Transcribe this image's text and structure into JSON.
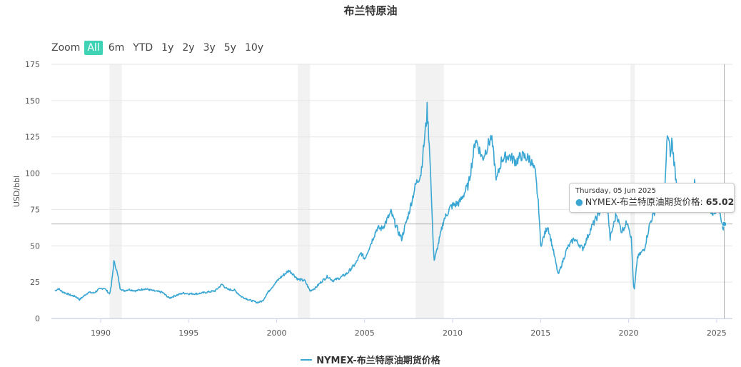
{
  "title": "布兰特原油",
  "zoom": {
    "label": "Zoom",
    "buttons": [
      "All",
      "6m",
      "YTD",
      "1y",
      "2y",
      "3y",
      "5y",
      "10y"
    ],
    "active": "All"
  },
  "tooltip": {
    "date": "Thursday, 05 Jun 2025",
    "series_label": "NYMEX-布兰特原油期货价格",
    "value": "65.02"
  },
  "colors": {
    "series": "#3aa6d3",
    "active_zoom": "#3fd2b5",
    "recession_band": "#f2f2f2",
    "grid": "#e6e6e6"
  },
  "chart_data": {
    "type": "line",
    "title": "布兰特原油",
    "ylabel": "USD/bbl",
    "xlabel": "",
    "ylim": [
      0,
      175
    ],
    "xlim": [
      1987.2,
      2025.9
    ],
    "yticks": [
      0,
      25,
      50,
      75,
      100,
      125,
      150,
      175
    ],
    "xticks": [
      1990,
      1995,
      2000,
      2005,
      2010,
      2015,
      2020,
      2025
    ],
    "grid": true,
    "legend_position": "bottom",
    "recession_bands": [
      [
        1990.5,
        1991.2
      ],
      [
        2001.2,
        2001.9
      ],
      [
        2007.9,
        2009.5
      ],
      [
        2020.1,
        2020.35
      ]
    ],
    "crosshair": {
      "x": 2025.43,
      "y": 65.02
    },
    "series": [
      {
        "name": "NYMEX-布兰特原油期货价格",
        "points": [
          [
            1987.4,
            19
          ],
          [
            1987.6,
            20.5
          ],
          [
            1987.8,
            18.5
          ],
          [
            1988.0,
            17.5
          ],
          [
            1988.3,
            16
          ],
          [
            1988.6,
            15
          ],
          [
            1988.8,
            13
          ],
          [
            1989.0,
            15
          ],
          [
            1989.3,
            18
          ],
          [
            1989.6,
            17.5
          ],
          [
            1989.9,
            20
          ],
          [
            1990.2,
            21
          ],
          [
            1990.5,
            17
          ],
          [
            1990.6,
            22
          ],
          [
            1990.7,
            33
          ],
          [
            1990.75,
            39
          ],
          [
            1990.85,
            36
          ],
          [
            1991.0,
            28
          ],
          [
            1991.1,
            21
          ],
          [
            1991.3,
            19
          ],
          [
            1991.6,
            20
          ],
          [
            1992.0,
            19
          ],
          [
            1992.5,
            20.5
          ],
          [
            1993.0,
            19
          ],
          [
            1993.5,
            18
          ],
          [
            1993.9,
            14
          ],
          [
            1994.3,
            16
          ],
          [
            1994.7,
            17.5
          ],
          [
            1995.0,
            17
          ],
          [
            1995.5,
            17
          ],
          [
            1996.0,
            18
          ],
          [
            1996.5,
            19
          ],
          [
            1996.9,
            23.5
          ],
          [
            1997.2,
            20
          ],
          [
            1997.6,
            19.5
          ],
          [
            1998.0,
            15
          ],
          [
            1998.5,
            12.5
          ],
          [
            1998.9,
            11
          ],
          [
            1999.2,
            12
          ],
          [
            1999.5,
            18
          ],
          [
            1999.9,
            24
          ],
          [
            2000.2,
            28
          ],
          [
            2000.7,
            33
          ],
          [
            2000.9,
            31
          ],
          [
            2001.2,
            27
          ],
          [
            2001.6,
            26
          ],
          [
            2001.9,
            19
          ],
          [
            2002.2,
            21
          ],
          [
            2002.6,
            26
          ],
          [
            2002.9,
            29
          ],
          [
            2003.2,
            26
          ],
          [
            2003.6,
            28
          ],
          [
            2004.0,
            31
          ],
          [
            2004.5,
            38
          ],
          [
            2004.8,
            45
          ],
          [
            2005.0,
            41
          ],
          [
            2005.4,
            53
          ],
          [
            2005.7,
            62
          ],
          [
            2006.0,
            62
          ],
          [
            2006.5,
            73
          ],
          [
            2006.9,
            60
          ],
          [
            2007.1,
            55
          ],
          [
            2007.5,
            72
          ],
          [
            2007.9,
            92
          ],
          [
            2008.2,
            100
          ],
          [
            2008.5,
            135
          ],
          [
            2008.55,
            144
          ],
          [
            2008.7,
            115
          ],
          [
            2008.85,
            65
          ],
          [
            2008.95,
            40
          ],
          [
            2009.05,
            44
          ],
          [
            2009.5,
            68
          ],
          [
            2009.9,
            77
          ],
          [
            2010.4,
            80
          ],
          [
            2010.9,
            92
          ],
          [
            2011.2,
            115
          ],
          [
            2011.3,
            124
          ],
          [
            2011.7,
            110
          ],
          [
            2012.2,
            125
          ],
          [
            2012.5,
            95
          ],
          [
            2012.8,
            110
          ],
          [
            2013.2,
            112
          ],
          [
            2013.6,
            108
          ],
          [
            2013.9,
            112
          ],
          [
            2014.4,
            110
          ],
          [
            2014.7,
            100
          ],
          [
            2014.9,
            75
          ],
          [
            2015.0,
            50
          ],
          [
            2015.4,
            64
          ],
          [
            2015.7,
            48
          ],
          [
            2016.0,
            30
          ],
          [
            2016.5,
            48
          ],
          [
            2016.9,
            55
          ],
          [
            2017.4,
            48
          ],
          [
            2017.9,
            63
          ],
          [
            2018.3,
            72
          ],
          [
            2018.75,
            84
          ],
          [
            2018.95,
            55
          ],
          [
            2019.3,
            72
          ],
          [
            2019.6,
            60
          ],
          [
            2019.95,
            67
          ],
          [
            2020.15,
            55
          ],
          [
            2020.28,
            22
          ],
          [
            2020.33,
            20
          ],
          [
            2020.5,
            42
          ],
          [
            2020.9,
            48
          ],
          [
            2021.2,
            65
          ],
          [
            2021.8,
            84
          ],
          [
            2021.95,
            72
          ],
          [
            2022.1,
            98
          ],
          [
            2022.2,
            128
          ],
          [
            2022.4,
            112
          ],
          [
            2022.45,
            123
          ],
          [
            2022.7,
            95
          ],
          [
            2022.95,
            82
          ],
          [
            2023.3,
            78
          ],
          [
            2023.5,
            75
          ],
          [
            2023.75,
            94
          ],
          [
            2023.95,
            77
          ],
          [
            2024.3,
            90
          ],
          [
            2024.7,
            73
          ],
          [
            2024.95,
            74
          ],
          [
            2025.05,
            82
          ],
          [
            2025.25,
            66
          ],
          [
            2025.35,
            61
          ],
          [
            2025.43,
            65.02
          ]
        ]
      }
    ]
  }
}
